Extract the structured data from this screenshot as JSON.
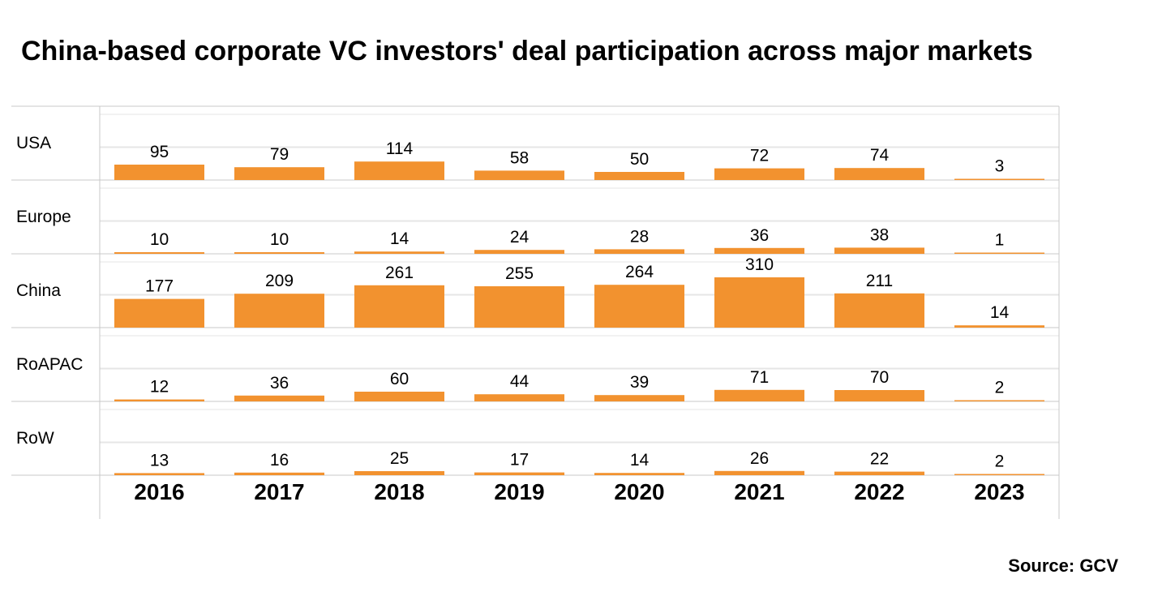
{
  "title": "China-based corporate VC investors' deal participation across major markets",
  "source": "Source: GCV",
  "colors": {
    "bar": "#F2922F",
    "grid_major": "#C8C8C8",
    "grid_minor": "#E6E6E6"
  },
  "chart_data": {
    "type": "bar",
    "layout": "small-multiples (one row per market)",
    "title": "China-based corporate VC investors' deal participation across major markets",
    "categories": [
      "2016",
      "2017",
      "2018",
      "2019",
      "2020",
      "2021",
      "2022",
      "2023"
    ],
    "series": [
      {
        "name": "USA",
        "values": [
          95,
          79,
          114,
          58,
          50,
          72,
          74,
          3
        ]
      },
      {
        "name": "Europe",
        "values": [
          10,
          10,
          14,
          24,
          28,
          36,
          38,
          1
        ]
      },
      {
        "name": "China",
        "values": [
          177,
          209,
          261,
          255,
          264,
          310,
          211,
          14
        ]
      },
      {
        "name": "RoAPAC",
        "values": [
          12,
          36,
          60,
          44,
          39,
          71,
          70,
          2
        ]
      },
      {
        "name": "RoW",
        "values": [
          13,
          16,
          25,
          17,
          14,
          26,
          22,
          2
        ]
      }
    ],
    "ylim": [
      0,
      500
    ],
    "data_labels": true,
    "grid": true,
    "legend": "none (row labels on left)"
  }
}
